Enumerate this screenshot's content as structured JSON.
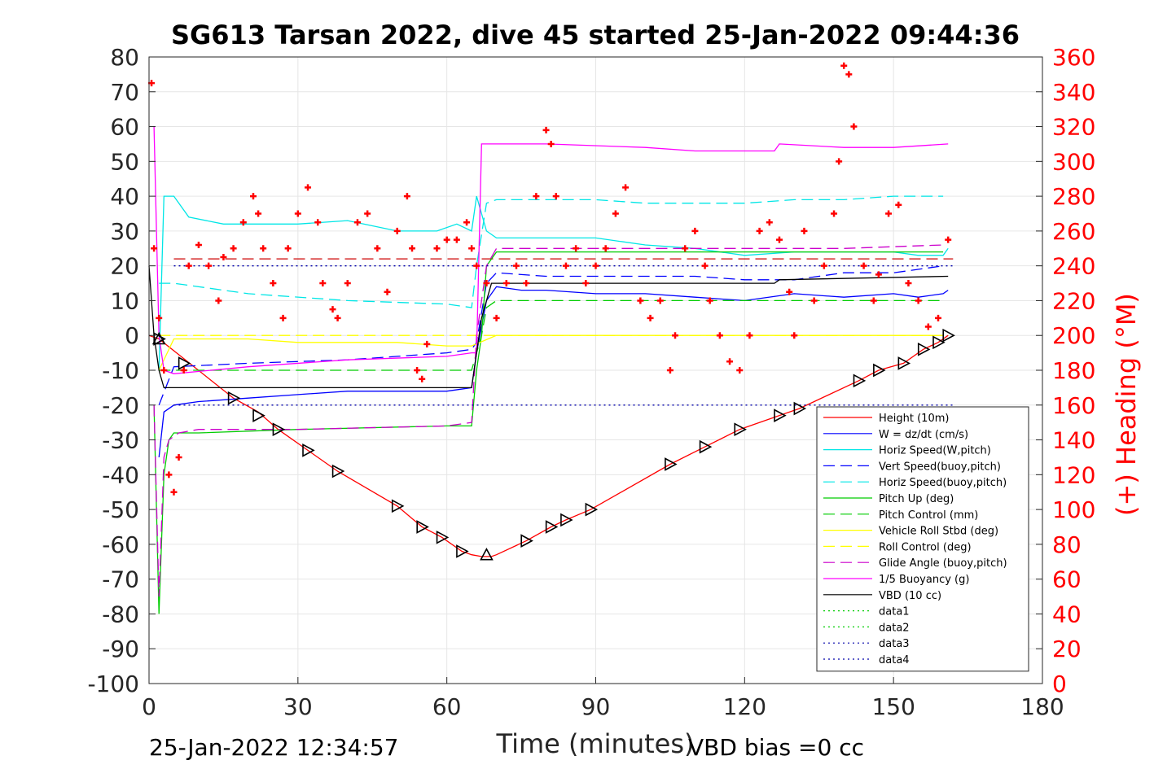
{
  "chart_data": {
    "type": "line",
    "title": "SG613 Tarsan 2022, dive 45 started 25-Jan-2022 09:44:36",
    "xlabel": "Time (minutes)",
    "ylabel_right": "(+) Heading (°M)",
    "footer_left": "25-Jan-2022 12:34:57",
    "footer_right": "VBD bias =0 cc",
    "xlim": [
      0,
      180
    ],
    "ylim_left": [
      -100,
      80
    ],
    "ylim_right": [
      0,
      360
    ],
    "x_ticks": [
      "0",
      "30",
      "60",
      "90",
      "120",
      "150",
      "180"
    ],
    "y_left_ticks": [
      "80",
      "70",
      "60",
      "50",
      "40",
      "30",
      "20",
      "10",
      "0",
      "-10",
      "-20",
      "-30",
      "-40",
      "-50",
      "-60",
      "-70",
      "-80",
      "-90",
      "-100"
    ],
    "y_right_ticks": [
      "360",
      "340",
      "320",
      "300",
      "280",
      "260",
      "240",
      "220",
      "200",
      "180",
      "160",
      "140",
      "120",
      "100",
      "80",
      "60",
      "40",
      "20",
      "0"
    ],
    "grid": true,
    "legend_position": "bottom-right",
    "colors": {
      "height": "#ff0000",
      "w": "#0000ff",
      "horiz_speed": "#00e6e6",
      "pitch": "#00cc00",
      "roll": "#ffff00",
      "glide": "#cc00cc",
      "buoyancy": "#ff00ff",
      "vbd": "#000000",
      "heading": "#ff0000"
    },
    "series": [
      {
        "name": "Height (10m)",
        "color": "#ff0000",
        "style": "solid",
        "x": [
          0,
          2,
          17,
          22,
          26,
          32,
          38,
          50,
          55,
          59,
          63,
          65,
          67,
          69,
          70,
          76,
          81,
          84,
          89,
          105,
          112,
          119,
          127,
          131,
          143,
          147,
          152,
          156,
          159,
          161
        ],
        "y": [
          0,
          -1,
          -18,
          -22,
          -27,
          -33,
          -39,
          -49,
          -55,
          -58,
          -62,
          -63,
          -63.5,
          -63.5,
          -63,
          -59,
          -55,
          -53,
          -50,
          -37,
          -32,
          -27,
          -23,
          -21,
          -13,
          -10,
          -8,
          -4,
          -2,
          0
        ]
      },
      {
        "name": "W = dz/dt (cm/s)",
        "color": "#0000ff",
        "style": "solid",
        "x": [
          2,
          3,
          5,
          10,
          20,
          30,
          40,
          50,
          60,
          65,
          66,
          68,
          70,
          75,
          80,
          90,
          100,
          110,
          120,
          130,
          140,
          150,
          155,
          160,
          161
        ],
        "y": [
          -35,
          -22,
          -20,
          -19,
          -18,
          -17,
          -16,
          -16,
          -16,
          -15,
          -5,
          10,
          14,
          13,
          13,
          12,
          12,
          11,
          10,
          12,
          11,
          12,
          11,
          12,
          13
        ]
      },
      {
        "name": "Horiz Speed(W,pitch)",
        "color": "#00e6e6",
        "style": "solid",
        "x": [
          2,
          3,
          5,
          8,
          15,
          30,
          40,
          50,
          58,
          62,
          65,
          66,
          68,
          70,
          75,
          80,
          90,
          100,
          110,
          120,
          130,
          140,
          150,
          155,
          160,
          161
        ],
        "y": [
          -10,
          40,
          40,
          34,
          32,
          32,
          33,
          30,
          30,
          32,
          30,
          40,
          30,
          28,
          28,
          28,
          28,
          26,
          25,
          23,
          24,
          24,
          24,
          23,
          23,
          25
        ]
      },
      {
        "name": "Vert Speed(buoy,pitch)",
        "color": "#0000ff",
        "style": "dashed",
        "x": [
          2,
          5,
          20,
          40,
          60,
          65,
          66,
          68,
          70,
          80,
          90,
          100,
          110,
          120,
          130,
          140,
          150,
          160
        ],
        "y": [
          -20,
          -9,
          -8,
          -7,
          -5,
          -4,
          -2,
          15,
          18,
          17,
          17,
          17,
          17,
          16,
          16,
          18,
          18,
          20
        ]
      },
      {
        "name": "Horiz Speed(buoy,pitch)",
        "color": "#00e6e6",
        "style": "dashed",
        "x": [
          2,
          5,
          20,
          40,
          60,
          65,
          66,
          68,
          70,
          80,
          90,
          100,
          110,
          120,
          130,
          140,
          150,
          160
        ],
        "y": [
          15,
          15,
          12,
          10,
          9,
          8,
          20,
          38,
          39,
          39,
          39,
          38,
          38,
          38,
          39,
          39,
          40,
          40
        ]
      },
      {
        "name": "Pitch Up (deg)",
        "color": "#00cc00",
        "style": "solid",
        "x": [
          1,
          2,
          3,
          4,
          5,
          10,
          30,
          60,
          65,
          66,
          67,
          68,
          70,
          80,
          100,
          120,
          140,
          160
        ],
        "y": [
          -20,
          -80,
          -40,
          -30,
          -28,
          -28,
          -27,
          -26,
          -26,
          -10,
          0,
          20,
          24,
          24,
          24,
          24,
          24,
          24
        ]
      },
      {
        "name": "Pitch Control (mm)",
        "color": "#00cc00",
        "style": "dashed",
        "x": [
          2,
          5,
          20,
          40,
          60,
          65,
          67,
          68,
          70,
          80,
          100,
          120,
          140,
          160
        ],
        "y": [
          -10,
          -10,
          -10,
          -10,
          -10,
          -10,
          0,
          8,
          10,
          10,
          10,
          10,
          10,
          10
        ]
      },
      {
        "name": "Vehicle Roll Stbd (deg)",
        "color": "#ffff00",
        "style": "solid",
        "x": [
          2,
          5,
          10,
          20,
          30,
          40,
          50,
          60,
          65,
          70,
          80,
          90,
          100,
          110,
          120,
          130,
          140,
          150,
          160
        ],
        "y": [
          -10,
          -1,
          -1,
          -1,
          -2,
          -2,
          -2,
          -3,
          -3,
          0,
          0,
          0,
          0,
          0,
          0,
          0,
          0,
          0,
          0
        ]
      },
      {
        "name": "Roll Control (deg)",
        "color": "#ffff00",
        "style": "dashed",
        "x": [
          2,
          5,
          40,
          60,
          65,
          70,
          100,
          130,
          160
        ],
        "y": [
          0,
          0,
          0,
          0,
          0,
          0,
          0,
          0,
          0
        ]
      },
      {
        "name": "Glide Angle (buoy,pitch)",
        "color": "#cc00cc",
        "style": "dashed",
        "x": [
          1,
          2,
          3,
          4,
          6,
          10,
          30,
          60,
          65,
          66,
          68,
          70,
          80,
          100,
          120,
          140,
          160
        ],
        "y": [
          -20,
          -75,
          -35,
          -30,
          -28,
          -27,
          -27,
          -26,
          -25,
          0,
          20,
          25,
          25,
          25,
          25,
          25,
          26
        ]
      },
      {
        "name": "1/5 Buoyancy (g)",
        "color": "#ff00ff",
        "style": "solid",
        "x": [
          1,
          2,
          3,
          5,
          20,
          40,
          60,
          65,
          66,
          67,
          70,
          80,
          100,
          110,
          120,
          126,
          127,
          140,
          150,
          161
        ],
        "y": [
          60,
          0,
          -10,
          -11,
          -9,
          -7,
          -6,
          -5,
          -5,
          55,
          55,
          55,
          54,
          53,
          53,
          53,
          55,
          54,
          54,
          55
        ]
      },
      {
        "name": "VBD (10 cc)",
        "color": "#000000",
        "style": "solid",
        "x": [
          0,
          1,
          2,
          3,
          4,
          5,
          65,
          66,
          67,
          68,
          69,
          70,
          126,
          127,
          161
        ],
        "y": [
          20,
          0,
          -10,
          -15,
          -15,
          -15,
          -15,
          -5,
          5,
          10,
          15,
          15,
          15,
          16,
          17
        ]
      },
      {
        "name": "data1",
        "color": "#00cc00",
        "style": "dotted",
        "x": [],
        "y": []
      },
      {
        "name": "data2",
        "color": "#00cc00",
        "style": "dotted",
        "x": [],
        "y": []
      },
      {
        "name": "data3",
        "color": "#0000aa",
        "style": "dotted",
        "x": [
          5,
          162
        ],
        "y": [
          -20,
          -20
        ]
      },
      {
        "name": "data4",
        "color": "#0000aa",
        "style": "dotted",
        "x": [
          5,
          162
        ],
        "y": [
          20,
          20
        ]
      }
    ],
    "reference_line": {
      "color": "#cc0000",
      "style": "dashed",
      "x": [
        5,
        162
      ],
      "y": [
        22,
        22
      ]
    },
    "heading": {
      "name": "(+) Heading (°M)",
      "color": "#ff0000",
      "marker": "+",
      "x": [
        0.5,
        1,
        2,
        3,
        4,
        5,
        6,
        7,
        8,
        10,
        12,
        14,
        15,
        17,
        19,
        21,
        22,
        23,
        25,
        27,
        28,
        30,
        32,
        34,
        35,
        37,
        38,
        40,
        42,
        44,
        46,
        48,
        50,
        52,
        53,
        54,
        55,
        56,
        58,
        60,
        62,
        64,
        65,
        66,
        68,
        70,
        72,
        74,
        76,
        78,
        80,
        81,
        82,
        84,
        86,
        88,
        90,
        92,
        94,
        96,
        99,
        101,
        103,
        105,
        106,
        108,
        110,
        112,
        113,
        115,
        117,
        119,
        121,
        123,
        125,
        127,
        129,
        130,
        132,
        134,
        136,
        138,
        139,
        140,
        141,
        142,
        144,
        146,
        147,
        149,
        151,
        153,
        155,
        157,
        159,
        161
      ],
      "y": [
        345,
        250,
        210,
        180,
        120,
        110,
        130,
        180,
        240,
        252,
        240,
        220,
        245,
        250,
        265,
        280,
        270,
        250,
        230,
        210,
        250,
        270,
        285,
        265,
        230,
        215,
        210,
        230,
        265,
        270,
        250,
        225,
        260,
        280,
        250,
        180,
        175,
        195,
        250,
        255,
        255,
        265,
        250,
        240,
        230,
        210,
        230,
        240,
        230,
        280,
        318,
        310,
        280,
        240,
        250,
        230,
        240,
        250,
        270,
        285,
        220,
        210,
        220,
        180,
        200,
        250,
        260,
        240,
        220,
        200,
        185,
        180,
        200,
        260,
        265,
        255,
        225,
        200,
        260,
        220,
        240,
        270,
        300,
        355,
        350,
        320,
        240,
        220,
        235,
        270,
        275,
        230,
        220,
        205,
        210,
        255
      ]
    },
    "markers": {
      "color": "#000000",
      "right_triangles": {
        "x": [
          2,
          7,
          17,
          22,
          26,
          32,
          38,
          50,
          55,
          59,
          63,
          76,
          81,
          84,
          89,
          105,
          112,
          119,
          127,
          131,
          143,
          147,
          152,
          156,
          159,
          161
        ],
        "y": [
          -1,
          -8,
          -18,
          -23,
          -27,
          -33,
          -39,
          -49,
          -55,
          -58,
          -62,
          -59,
          -55,
          -53,
          -50,
          -37,
          -32,
          -27,
          -23,
          -21,
          -13,
          -10,
          -8,
          -4,
          -2,
          0
        ]
      },
      "up_triangles": {
        "x": [
          2,
          68
        ],
        "y": [
          -1,
          -63
        ]
      }
    }
  }
}
